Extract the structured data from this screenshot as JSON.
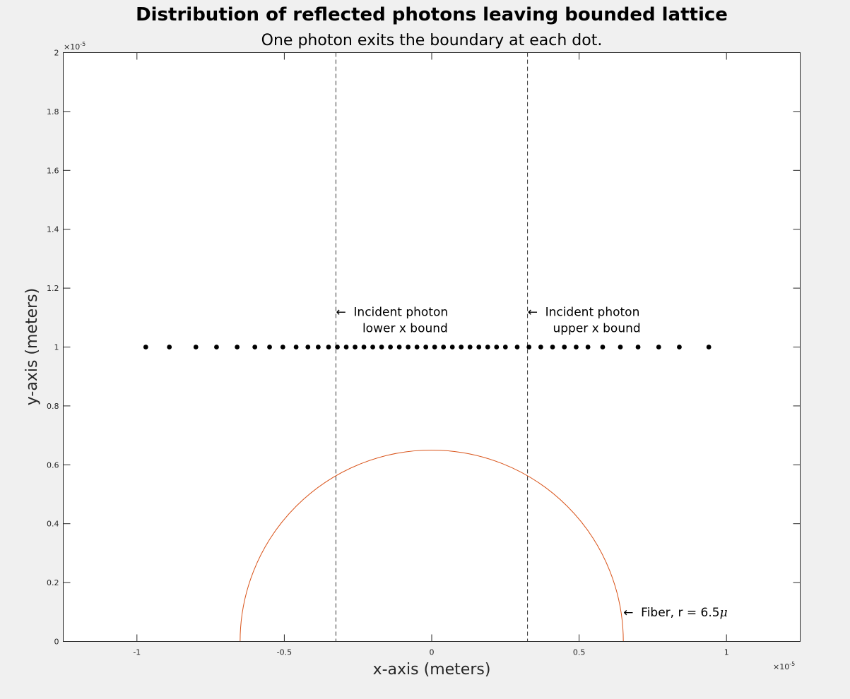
{
  "chart_data": {
    "type": "scatter",
    "title": "Distribution of reflected photons leaving bounded lattice",
    "subtitle": "One photon exits the boundary at each dot.",
    "xlabel": "x-axis (meters)",
    "ylabel": "y-axis (meters)",
    "x_scale_label": "×10",
    "x_scale_exp": "-5",
    "y_scale_label": "×10",
    "y_scale_exp": "-5",
    "xlim": [
      -1.25e-05,
      1.25e-05
    ],
    "ylim": [
      0,
      2e-05
    ],
    "x_ticks": [
      -1e-05,
      -5e-06,
      0,
      5e-06,
      1e-05
    ],
    "x_tick_labels": [
      "-1",
      "-0.5",
      "0",
      "0.5",
      "1"
    ],
    "y_ticks": [
      0,
      2e-06,
      4e-06,
      6e-06,
      8e-06,
      1e-05,
      1.2e-05,
      1.4e-05,
      1.6e-05,
      1.8e-05,
      2e-05
    ],
    "y_tick_labels": [
      "0",
      "0.2",
      "0.4",
      "0.6",
      "0.8",
      "1",
      "1.2",
      "1.4",
      "1.6",
      "1.8",
      "2"
    ],
    "grid": false,
    "series": [
      {
        "marker_color": "#000000",
        "x": [
          -9.7e-06,
          -8.9e-06,
          -8e-06,
          -7.3e-06,
          -6.6e-06,
          -6e-06,
          -5.5e-06,
          -5.05e-06,
          -4.6e-06,
          -4.2e-06,
          -3.85e-06,
          -3.5e-06,
          -3.2e-06,
          -2.9e-06,
          -2.6e-06,
          -2.3e-06,
          -2e-06,
          -1.7e-06,
          -1.4e-06,
          -1.1e-06,
          -8e-07,
          -5e-07,
          -2e-07,
          1e-07,
          4e-07,
          7e-07,
          1e-06,
          1.3e-06,
          1.6e-06,
          1.9e-06,
          2.2e-06,
          2.5e-06,
          2.9e-06,
          3.3e-06,
          3.7e-06,
          4.1e-06,
          4.5e-06,
          4.9e-06,
          5.3e-06,
          5.8e-06,
          6.4e-06,
          7e-06,
          7.7e-06,
          8.4e-06,
          9.4e-06
        ],
        "y": 1e-05
      }
    ],
    "vlines": [
      {
        "x": -3.25e-06,
        "style": "dashed",
        "color": "#333333"
      },
      {
        "x": 3.25e-06,
        "style": "dashed",
        "color": "#333333"
      }
    ],
    "fiber_circle": {
      "cx": 0,
      "cy": 0,
      "r": 6.5e-06,
      "color": "#d95319"
    },
    "annotations": [
      {
        "arrow": "←",
        "lines": [
          "Incident photon",
          "lower x bound"
        ],
        "x": -3.25e-06,
        "y": 1.12e-05
      },
      {
        "arrow": "←",
        "lines": [
          "Incident photon",
          "upper x bound"
        ],
        "x": 3.25e-06,
        "y": 1.12e-05
      },
      {
        "arrow": "←",
        "text": "Fiber, r = 6.5",
        "symbol": "μ",
        "x": 6.5e-06,
        "y": 1e-06
      }
    ]
  }
}
